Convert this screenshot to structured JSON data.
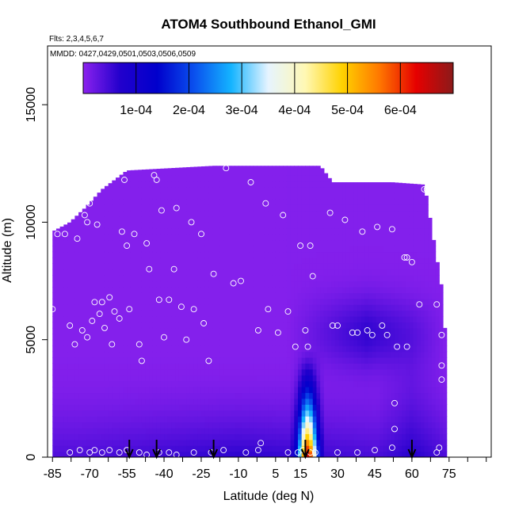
{
  "chart_data": {
    "type": "heatmap",
    "title": "ATOM4 Southbound Ethanol_GMI",
    "flights_label": "Flts: 2,3,4,5,6,7",
    "dates_label": "MMDD: 0427,0429,0501,0503,0506,0509",
    "xlabel": "Latitude (deg N)",
    "ylabel": "Altitude (m)",
    "xlim": [
      -87,
      92
    ],
    "ylim": [
      0,
      17500
    ],
    "x_ticks": [
      -85,
      -70,
      -55,
      -40,
      -25,
      -10,
      5,
      15,
      30,
      45,
      60,
      75
    ],
    "x_tick_labels": [
      "-85",
      "-70",
      "-55",
      "-40",
      "-25",
      "-10",
      "5",
      "15",
      "30",
      "45",
      "60",
      "75"
    ],
    "x_minor_ticks": [
      -85,
      -77.5,
      -70,
      -62.5,
      -55,
      -47.5,
      -40,
      -32.5,
      -25,
      -17.5,
      -10,
      -2.5,
      5,
      10,
      15,
      22.5,
      30,
      37.5,
      45,
      52.5,
      60,
      67.5,
      75,
      82.5,
      90
    ],
    "y_ticks": [
      0,
      5000,
      10000,
      15000
    ],
    "y_tick_labels": [
      "0",
      "5000",
      "10000",
      "15000"
    ],
    "colorbar": {
      "range": [
        0,
        0.0007
      ],
      "ticks": [
        0.0001,
        0.0002,
        0.0003,
        0.0004,
        0.0005,
        0.0006
      ],
      "tick_labels": [
        "1e-04",
        "2e-04",
        "3e-04",
        "4e-04",
        "5e-04",
        "6e-04"
      ],
      "colors": [
        "#8b22ee",
        "#2200cc",
        "#0000cc",
        "#0a50ee",
        "#14b4ff",
        "#e6f4ff",
        "#fff8b4",
        "#ffd200",
        "#ff7800",
        "#e60000",
        "#8b1a1a"
      ]
    },
    "profile_markers_lat": [
      -54,
      -43,
      -20,
      17,
      60
    ],
    "field": {
      "lat_min": -85,
      "lat_max": 73,
      "top_profile": [
        [
          -85,
          9600
        ],
        [
          -78,
          10000
        ],
        [
          -72,
          10600
        ],
        [
          -65,
          11400
        ],
        [
          -55,
          12200
        ],
        [
          -20,
          12400
        ],
        [
          23,
          12400
        ],
        [
          28,
          11700
        ],
        [
          52,
          11700
        ],
        [
          65,
          11600
        ],
        [
          72,
          7200
        ],
        [
          73,
          5500
        ]
      ],
      "plume": {
        "lat": 18,
        "lat_halfwidth": 4,
        "alt_top": 4700
      }
    },
    "samples": [
      [
        -85,
        6300
      ],
      [
        -83,
        9500
      ],
      [
        -80,
        9500
      ],
      [
        -78,
        5600
      ],
      [
        -76,
        4800
      ],
      [
        -75,
        9300
      ],
      [
        -72,
        10300
      ],
      [
        -71,
        10000
      ],
      [
        -70,
        10800
      ],
      [
        -68,
        11400
      ],
      [
        -67,
        9900
      ],
      [
        -73,
        5400
      ],
      [
        -71,
        5100
      ],
      [
        -69,
        5800
      ],
      [
        -68,
        6600
      ],
      [
        -66,
        6100
      ],
      [
        -65,
        6600
      ],
      [
        -64,
        5500
      ],
      [
        -62,
        6800
      ],
      [
        -61,
        4800
      ],
      [
        -60,
        6200
      ],
      [
        -58,
        5900
      ],
      [
        -57,
        9600
      ],
      [
        -56,
        11800
      ],
      [
        -55,
        9000
      ],
      [
        -54,
        6300
      ],
      [
        -52,
        9500
      ],
      [
        -50,
        4800
      ],
      [
        -49,
        4100
      ],
      [
        -47,
        9100
      ],
      [
        -46,
        8000
      ],
      [
        -44,
        12000
      ],
      [
        -43,
        11800
      ],
      [
        -42,
        6700
      ],
      [
        -41,
        10500
      ],
      [
        -40,
        5100
      ],
      [
        -38,
        6700
      ],
      [
        -36,
        8000
      ],
      [
        -35,
        10600
      ],
      [
        -33,
        6400
      ],
      [
        -31,
        5000
      ],
      [
        -29,
        10000
      ],
      [
        -28,
        6300
      ],
      [
        -25,
        9500
      ],
      [
        -24,
        5700
      ],
      [
        -22,
        4100
      ],
      [
        -20,
        7800
      ],
      [
        -15,
        12300
      ],
      [
        -12,
        7400
      ],
      [
        -9,
        7500
      ],
      [
        -5,
        11700
      ],
      [
        -2,
        5400
      ],
      [
        1,
        10800
      ],
      [
        2,
        6300
      ],
      [
        6,
        5300
      ],
      [
        8,
        10300
      ],
      [
        10,
        6200
      ],
      [
        13,
        4700
      ],
      [
        15,
        9000
      ],
      [
        17,
        5400
      ],
      [
        18,
        4700
      ],
      [
        19,
        9000
      ],
      [
        20,
        7700
      ],
      [
        27,
        10400
      ],
      [
        28,
        5600
      ],
      [
        30,
        5600
      ],
      [
        33,
        10100
      ],
      [
        36,
        5300
      ],
      [
        38,
        5300
      ],
      [
        40,
        9600
      ],
      [
        42,
        5400
      ],
      [
        44,
        5200
      ],
      [
        46,
        9800
      ],
      [
        48,
        5600
      ],
      [
        50,
        5200
      ],
      [
        52,
        9700
      ],
      [
        54,
        4700
      ],
      [
        57,
        8500
      ],
      [
        58,
        8500
      ],
      [
        60,
        8300
      ],
      [
        63,
        6500
      ],
      [
        65,
        11400
      ],
      [
        66,
        11400
      ],
      [
        70,
        6500
      ],
      [
        72,
        5200
      ],
      [
        72,
        3900
      ],
      [
        72,
        3300
      ],
      [
        71,
        400
      ],
      [
        70,
        200
      ],
      [
        -78,
        200
      ],
      [
        -74,
        300
      ],
      [
        -70,
        200
      ],
      [
        -68,
        300
      ],
      [
        -65,
        200
      ],
      [
        -62,
        300
      ],
      [
        -58,
        200
      ],
      [
        -55,
        300
      ],
      [
        -50,
        200
      ],
      [
        -47,
        100
      ],
      [
        -42,
        200
      ],
      [
        -38,
        200
      ],
      [
        -35,
        100
      ],
      [
        -28,
        200
      ],
      [
        -21,
        200
      ],
      [
        -16,
        300
      ],
      [
        -7,
        200
      ],
      [
        -2,
        300
      ],
      [
        -1,
        600
      ],
      [
        10,
        200
      ],
      [
        14,
        200
      ],
      [
        16,
        300
      ],
      [
        19,
        200
      ],
      [
        21,
        200
      ],
      [
        30,
        200
      ],
      [
        38,
        200
      ],
      [
        45,
        300
      ],
      [
        52,
        400
      ],
      [
        53,
        1200
      ],
      [
        53,
        2300
      ],
      [
        58,
        4700
      ]
    ]
  }
}
